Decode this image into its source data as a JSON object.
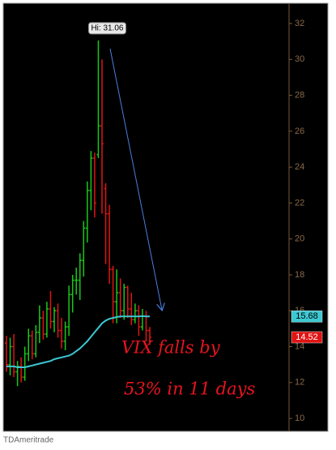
{
  "chart_data": {
    "type": "ohlc",
    "ohlc": {
      "open": [
        14.2,
        13.0,
        14.0,
        12.6,
        12.9,
        12.3,
        13.6,
        14.6,
        13.6,
        14.8,
        15.6,
        14.7,
        16.1,
        15.4,
        16.0,
        14.9,
        14.3,
        15.1,
        16.9,
        17.7,
        17.7,
        18.8,
        20.6,
        22.7,
        24.5,
        24.7,
        26.3,
        22.8,
        21.4,
        18.3,
        16.5,
        17.0,
        16.0,
        17.3,
        16.1,
        15.5,
        16.0,
        15.1,
        15.7,
        14.9
      ],
      "high": [
        14.6,
        14.5,
        14.7,
        13.2,
        13.4,
        14.0,
        15.0,
        14.9,
        15.2,
        16.3,
        16.0,
        16.5,
        17.1,
        16.2,
        16.4,
        15.6,
        15.4,
        17.4,
        18.0,
        18.4,
        19.2,
        21.0,
        23.2,
        24.9,
        24.8,
        31.06,
        30.0,
        23.1,
        21.9,
        18.5,
        18.3,
        17.8,
        17.5,
        17.4,
        17.0,
        16.4,
        16.3,
        16.1,
        16.0,
        15.1
      ],
      "low": [
        12.6,
        12.4,
        12.3,
        11.8,
        12.0,
        12.1,
        13.2,
        13.3,
        13.4,
        14.2,
        14.4,
        14.5,
        15.0,
        14.8,
        14.5,
        13.9,
        13.8,
        14.6,
        15.9,
        16.9,
        16.6,
        17.9,
        19.8,
        21.6,
        21.2,
        24.5,
        21.4,
        18.6,
        17.5,
        15.3,
        15.3,
        15.6,
        15.5,
        15.6,
        15.2,
        15.3,
        14.6,
        14.9,
        14.3,
        14.1
      ],
      "close": [
        13.0,
        14.0,
        12.6,
        12.9,
        12.3,
        13.6,
        14.6,
        13.6,
        14.8,
        15.6,
        14.7,
        16.1,
        15.4,
        16.0,
        14.9,
        14.3,
        15.1,
        16.9,
        17.7,
        17.7,
        18.8,
        20.6,
        22.7,
        24.5,
        22.0,
        26.3,
        25.3,
        21.4,
        18.3,
        16.5,
        17.0,
        16.0,
        17.3,
        16.1,
        15.5,
        16.0,
        15.1,
        15.7,
        14.9,
        14.52
      ],
      "up_color": "#19c819",
      "down_color": "#e01414"
    },
    "moving_average": {
      "values": [
        12.9,
        12.9,
        12.9,
        12.85,
        12.85,
        12.85,
        12.9,
        12.95,
        13.0,
        13.05,
        13.1,
        13.15,
        13.2,
        13.3,
        13.35,
        13.4,
        13.45,
        13.5,
        13.6,
        13.75,
        13.9,
        14.1,
        14.3,
        14.55,
        14.8,
        15.05,
        15.3,
        15.45,
        15.55,
        15.6,
        15.65,
        15.68,
        15.68,
        15.68,
        15.68,
        15.68,
        15.68,
        15.7,
        15.68,
        15.68
      ],
      "color": "#3cc8d2"
    },
    "ylim": [
      9.28,
      33.13
    ],
    "yticks": [
      10,
      12,
      14,
      16,
      18,
      20,
      22,
      24,
      26,
      28,
      30,
      32
    ],
    "hi_label": "Hi: 31.06",
    "annotations": [
      "VIX falls by",
      "53% in 11 days"
    ],
    "source": "TDAmeritrade"
  }
}
